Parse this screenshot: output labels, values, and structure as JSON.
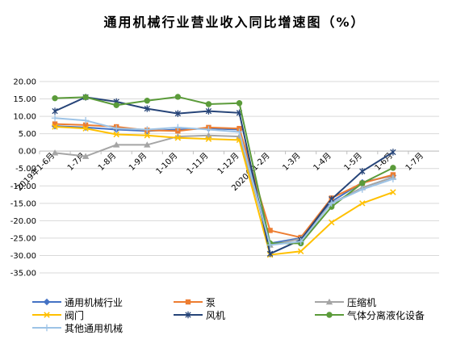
{
  "title": "通用机械行业营业收入同比增速图（%）",
  "chart_data": {
    "type": "line",
    "title": "通用机械行业营业收入同比增速图（%）",
    "xlabel": "",
    "ylabel": "",
    "ylim": [
      -35,
      20
    ],
    "yticks": [
      "20.00",
      "15.00",
      "10.00",
      "5.00",
      "0.00",
      "-5.00",
      "-10.00",
      "-15.00",
      "-20.00",
      "-25.00",
      "-30.00",
      "-35.00"
    ],
    "categories": [
      "2019年1-6月",
      "1-7月",
      "1-8月",
      "1-9月",
      "1-10月",
      "1-11月",
      "1-12月",
      "2020年1-2月",
      "1-3月",
      "1-4月",
      "1-5月",
      "1-6月",
      "1-7月"
    ],
    "grid": true,
    "legend_position": "bottom",
    "series": [
      {
        "name": "通用机械行业",
        "color": "#4472C4",
        "marker": "diamond",
        "values": [
          7.2,
          6.8,
          6.2,
          5.8,
          6.2,
          6.5,
          6.2,
          -26.5,
          -25.0,
          -14.5,
          -9.0,
          -7.0,
          null
        ]
      },
      {
        "name": "泵",
        "color": "#ED7D31",
        "marker": "square",
        "values": [
          7.8,
          7.5,
          7.0,
          6.0,
          5.8,
          6.8,
          6.5,
          -22.8,
          -24.8,
          -13.5,
          -9.2,
          -6.8,
          null
        ]
      },
      {
        "name": "压缩机",
        "color": "#A5A5A5",
        "marker": "triangle",
        "values": [
          -0.5,
          -1.5,
          1.8,
          1.8,
          4.2,
          4.5,
          4.2,
          -27.0,
          -25.2,
          -15.0,
          -10.5,
          -7.5,
          null
        ]
      },
      {
        "name": "阀门",
        "color": "#FFC000",
        "marker": "x",
        "values": [
          7.0,
          6.5,
          4.8,
          4.5,
          3.8,
          3.5,
          3.2,
          -29.8,
          -28.8,
          -20.5,
          -15.0,
          -11.8,
          null
        ]
      },
      {
        "name": "风机",
        "color": "#264478",
        "marker": "star",
        "values": [
          11.5,
          15.5,
          14.2,
          12.2,
          10.8,
          11.5,
          11.0,
          -29.5,
          -25.5,
          -13.8,
          -5.8,
          -0.3,
          null
        ]
      },
      {
        "name": "气体分离液化设备",
        "color": "#5B9B3A",
        "marker": "circle",
        "values": [
          15.2,
          15.5,
          13.2,
          14.5,
          15.6,
          13.5,
          13.8,
          -26.5,
          -26.5,
          -16.0,
          -9.2,
          -4.8,
          null
        ]
      },
      {
        "name": "其他通用机械",
        "color": "#9DC3E6",
        "marker": "plus",
        "values": [
          9.5,
          8.8,
          6.5,
          6.2,
          6.8,
          6.2,
          5.5,
          -27.0,
          -26.0,
          -15.0,
          -11.0,
          -8.0,
          null
        ]
      }
    ]
  }
}
